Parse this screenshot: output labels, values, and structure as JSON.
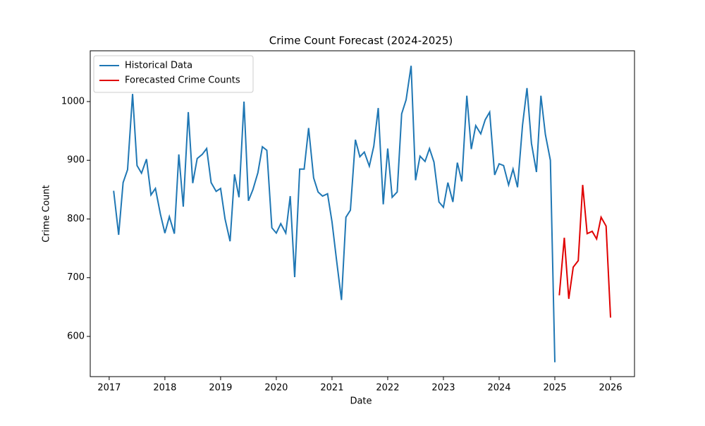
{
  "chart_data": {
    "type": "line",
    "title": "Crime Count Forecast (2024-2025)",
    "x_label": "Date",
    "y_label": "Crime Count",
    "legend": "upper left",
    "grid": false,
    "xlim": [
      2016.66,
      2026.43
    ],
    "ylim": [
      531.5,
      1086.5
    ],
    "xticks": [
      2017,
      2018,
      2019,
      2020,
      2021,
      2022,
      2023,
      2024,
      2025,
      2026
    ],
    "yticks": [
      600,
      700,
      800,
      900,
      1000
    ],
    "series": [
      {
        "name": "Historical Data",
        "color": "#1f77b4",
        "x": [
          2017.08,
          2017.17,
          2017.25,
          2017.33,
          2017.42,
          2017.5,
          2017.58,
          2017.67,
          2017.75,
          2017.83,
          2017.92,
          2018.0,
          2018.08,
          2018.17,
          2018.25,
          2018.33,
          2018.42,
          2018.5,
          2018.58,
          2018.67,
          2018.75,
          2018.83,
          2018.92,
          2019.0,
          2019.08,
          2019.17,
          2019.25,
          2019.33,
          2019.42,
          2019.5,
          2019.58,
          2019.67,
          2019.75,
          2019.83,
          2019.92,
          2020.0,
          2020.08,
          2020.17,
          2020.25,
          2020.33,
          2020.42,
          2020.5,
          2020.58,
          2020.67,
          2020.75,
          2020.83,
          2020.92,
          2021.0,
          2021.08,
          2021.17,
          2021.25,
          2021.33,
          2021.42,
          2021.5,
          2021.58,
          2021.67,
          2021.75,
          2021.83,
          2021.92,
          2022.0,
          2022.08,
          2022.17,
          2022.25,
          2022.33,
          2022.42,
          2022.5,
          2022.58,
          2022.67,
          2022.75,
          2022.83,
          2022.92,
          2023.0,
          2023.08,
          2023.17,
          2023.25,
          2023.33,
          2023.42,
          2023.5,
          2023.58,
          2023.67,
          2023.75,
          2023.83,
          2023.92,
          2024.0,
          2024.08,
          2024.17,
          2024.25,
          2024.33,
          2024.42,
          2024.5,
          2024.58,
          2024.67,
          2024.75,
          2024.83,
          2024.92,
          2025.0
        ],
        "values": [
          848,
          773,
          862,
          884,
          1013,
          891,
          878,
          902,
          841,
          852,
          808,
          776,
          804,
          775,
          910,
          821,
          982,
          861,
          903,
          910,
          920,
          862,
          847,
          852,
          800,
          762,
          876,
          837,
          1000,
          831,
          850,
          879,
          923,
          917,
          785,
          776,
          792,
          776,
          839,
          701,
          885,
          885,
          955,
          870,
          846,
          839,
          843,
          795,
          731,
          662,
          803,
          815,
          935,
          906,
          914,
          890,
          924,
          989,
          825,
          920,
          837,
          846,
          979,
          1003,
          1061,
          866,
          907,
          898,
          920,
          897,
          829,
          820,
          862,
          829,
          896,
          864,
          1010,
          919,
          959,
          945,
          969,
          982,
          875,
          894,
          891,
          858,
          885,
          854,
          960,
          1023,
          929,
          880,
          1010,
          944,
          900,
          556
        ]
      },
      {
        "name": "Forecasted Crime Counts",
        "color": "#e00000",
        "x": [
          2025.08,
          2025.17,
          2025.25,
          2025.33,
          2025.42,
          2025.5,
          2025.58,
          2025.67,
          2025.75,
          2025.83,
          2025.92,
          2026.0
        ],
        "values": [
          670,
          768,
          664,
          718,
          729,
          858,
          775,
          779,
          766,
          803,
          788,
          632
        ]
      }
    ]
  }
}
